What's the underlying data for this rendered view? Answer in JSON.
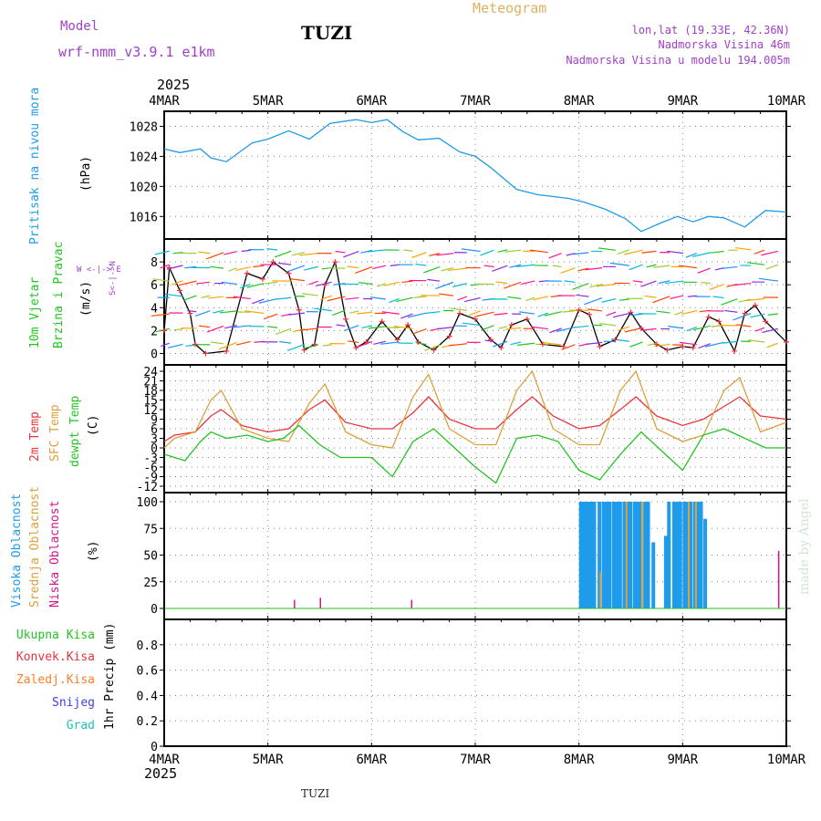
{
  "header": {
    "model_label": "Model",
    "model_name": "wrf-nmm_v3.9.1  e1km",
    "station": "TUZI",
    "meteogram_label": "Meteogram",
    "lonlat": "lon,lat (19.33E, 42.36N)",
    "altitude": "Nadmorska Visina 46m",
    "model_altitude": "Nadmorska Visina u modelu 194.005m",
    "year_top": "2025",
    "year_bottom": "2025",
    "footer_station": "TUZI",
    "credit": "made by Angel"
  },
  "colors": {
    "pressure": "#1e9bea",
    "temp2m": "#e8343c",
    "sfc": "#dca03c",
    "dewpt": "#22c422",
    "high_cloud": "#1e9bea",
    "mid_cloud": "#dca03c",
    "low_cloud": "#d4148c",
    "title": "#e0b060",
    "model": "#a040c8"
  },
  "legends": {
    "pressure_title": "Pritisak na nivou mora",
    "pressure_unit": "(hPa)",
    "wind_line1": "10m Vjetar",
    "wind_line2": "Brzina i Pravac",
    "wind_unit": "(m/s)",
    "wind_compass": "W <-|-> E",
    "wind_compass_ns": "S<-|->N",
    "temp_2m": "2m Temp",
    "temp_sfc": "SFC Temp",
    "temp_dew": "dewpt Temp",
    "temp_unit": "(C)",
    "cloud_high": "Visoka Oblacnost",
    "cloud_mid": "Srednja Oblacnost",
    "cloud_low": "Niska Oblacnost",
    "cloud_unit": "(%)",
    "precip_total": "Ukupna Kisa",
    "precip_conv": "Konvek.Kisa",
    "precip_frozen": "Zaledj.Kisa",
    "precip_snow": "Snijeg",
    "precip_hail": "Grad",
    "precip_unit": "1hr Precip (mm)"
  },
  "chart_data": [
    {
      "type": "line",
      "title": "Pritisak na nivou mora",
      "ylabel": "(hPa)",
      "x_labels": [
        "4MAR",
        "5MAR",
        "6MAR",
        "7MAR",
        "8MAR",
        "9MAR",
        "10MAR"
      ],
      "yticks": [
        1016,
        1020,
        1024,
        1028
      ],
      "ylim": [
        1013,
        1030
      ],
      "series": [
        {
          "values_x_days": [
            0,
            0.15,
            0.35,
            0.45,
            0.6,
            0.85,
            1.0,
            1.2,
            1.4,
            1.6,
            1.85,
            2.0,
            2.15,
            2.3,
            2.45,
            2.65,
            2.85,
            3.0,
            3.15,
            3.4,
            3.6,
            3.9,
            4.05,
            4.25,
            4.45,
            4.6,
            4.8,
            4.95,
            5.1,
            5.25,
            5.4,
            5.6,
            5.8,
            6.0
          ],
          "values": [
            1025,
            1024.5,
            1025,
            1023.8,
            1023.3,
            1025.8,
            1026.3,
            1027.4,
            1026.3,
            1028.4,
            1028.9,
            1028.5,
            1028.9,
            1027.3,
            1026.2,
            1026.4,
            1024.6,
            1024.0,
            1022.5,
            1019.6,
            1018.9,
            1018.4,
            1017.9,
            1017.0,
            1015.7,
            1014.0,
            1015.2,
            1016.0,
            1015.3,
            1016.0,
            1015.8,
            1014.6,
            1016.8,
            1016.6
          ]
        }
      ]
    },
    {
      "type": "line",
      "title": "10m Vjetar Brzina i Pravac",
      "ylabel": "(m/s)",
      "yticks": [
        0,
        2,
        4,
        6,
        8
      ],
      "ylim": [
        -1,
        10
      ],
      "series": [
        {
          "values_x_days": [
            0,
            0.05,
            0.15,
            0.25,
            0.3,
            0.4,
            0.6,
            0.8,
            0.95,
            1.05,
            1.2,
            1.3,
            1.35,
            1.45,
            1.55,
            1.65,
            1.75,
            1.85,
            1.95,
            2.1,
            2.25,
            2.35,
            2.45,
            2.6,
            2.75,
            2.85,
            3.0,
            3.15,
            3.25,
            3.35,
            3.5,
            3.65,
            3.85,
            4.0,
            4.1,
            4.2,
            4.35,
            4.5,
            4.6,
            4.75,
            4.85,
            5.0,
            5.1,
            5.25,
            5.35,
            5.5,
            5.6,
            5.7,
            5.8,
            6.0
          ],
          "values": [
            2,
            7.5,
            5.5,
            3.5,
            0.8,
            0,
            0.2,
            7,
            6.5,
            8,
            7,
            3.8,
            0.3,
            0.8,
            6,
            8,
            3,
            0.5,
            1,
            2.8,
            1.2,
            2.5,
            1,
            0.3,
            1.5,
            3.5,
            3,
            1.2,
            0.5,
            2.5,
            3,
            0.8,
            0.6,
            3.8,
            3.4,
            0.6,
            1.2,
            3.6,
            2.2,
            0.8,
            0.3,
            0.6,
            0.5,
            3.2,
            2.8,
            0.2,
            3.5,
            4.2,
            2.8,
            1
          ]
        }
      ]
    },
    {
      "type": "line",
      "title": "2m Temp / SFC Temp / dewpt Temp",
      "ylabel": "(C)",
      "yticks": [
        -12,
        -9,
        -6,
        -3,
        0,
        3,
        6,
        9,
        12,
        15,
        18,
        21,
        24
      ],
      "ylim": [
        -14,
        26
      ],
      "series": [
        {
          "name": "2m Temp",
          "values_x_days": [
            0,
            0.1,
            0.3,
            0.45,
            0.55,
            0.75,
            1.0,
            1.2,
            1.4,
            1.55,
            1.75,
            2.0,
            2.2,
            2.4,
            2.55,
            2.75,
            3.0,
            3.2,
            3.4,
            3.55,
            3.75,
            4.0,
            4.2,
            4.4,
            4.55,
            4.75,
            5.0,
            5.2,
            5.4,
            5.55,
            5.75,
            6.0
          ],
          "values": [
            2,
            4,
            5,
            10,
            12,
            7,
            5,
            6,
            12,
            15,
            8,
            6,
            6,
            11,
            16,
            9,
            6,
            6,
            12,
            16,
            10,
            6,
            7,
            12,
            16,
            10,
            7,
            9,
            13,
            16,
            10,
            9
          ]
        },
        {
          "name": "SFC Temp",
          "values_x_days": [
            0,
            0.1,
            0.3,
            0.45,
            0.55,
            0.75,
            1.0,
            1.2,
            1.4,
            1.55,
            1.75,
            2.0,
            2.2,
            2.4,
            2.55,
            2.75,
            3.0,
            3.2,
            3.4,
            3.55,
            3.75,
            4.0,
            4.2,
            4.4,
            4.55,
            4.75,
            5.0,
            5.2,
            5.4,
            5.55,
            5.75,
            6.0
          ],
          "values": [
            0,
            3,
            5,
            15,
            18,
            6,
            3,
            2,
            14,
            20,
            5,
            1,
            0,
            16,
            23,
            6,
            1,
            1,
            18,
            24,
            6,
            1,
            1,
            18,
            24,
            6,
            2,
            4,
            18,
            22,
            5,
            8
          ]
        },
        {
          "name": "dewpt Temp",
          "values_x_days": [
            0,
            0.2,
            0.35,
            0.45,
            0.6,
            0.8,
            1.0,
            1.15,
            1.3,
            1.5,
            1.7,
            2.0,
            2.2,
            2.4,
            2.6,
            2.8,
            3.0,
            3.2,
            3.4,
            3.6,
            3.8,
            4.0,
            4.2,
            4.4,
            4.6,
            4.8,
            5.0,
            5.2,
            5.4,
            5.6,
            5.8,
            6.0
          ],
          "values": [
            -2,
            -4,
            2,
            5,
            3,
            4,
            2,
            3,
            7,
            1,
            -3,
            -3,
            -9,
            2,
            6,
            0,
            -6,
            -11,
            3,
            4,
            2,
            -7,
            -10,
            -2,
            5,
            -1,
            -7,
            4,
            6,
            3,
            0,
            0
          ]
        }
      ]
    },
    {
      "type": "bar",
      "title": "Visoka / Srednja / Niska Oblacnost",
      "ylabel": "(%)",
      "yticks": [
        0,
        25,
        50,
        75,
        100
      ],
      "ylim": [
        0,
        100
      ],
      "series": [
        {
          "name": "Visoka Oblacnost",
          "bars_x_days": [
            4.0,
            4.02,
            4.05,
            4.08,
            4.1,
            4.13,
            4.18,
            4.22,
            4.25,
            4.28,
            4.32,
            4.35,
            4.38,
            4.42,
            4.45,
            4.48,
            4.52,
            4.55,
            4.58,
            4.62,
            4.65,
            4.7,
            4.82,
            4.85,
            4.9,
            4.93,
            4.96,
            5.0,
            5.03,
            5.06,
            5.1,
            5.13,
            5.16,
            5.2
          ],
          "values": [
            100,
            100,
            100,
            100,
            100,
            100,
            100,
            100,
            100,
            100,
            100,
            100,
            100,
            100,
            100,
            100,
            100,
            100,
            100,
            100,
            100,
            62,
            68,
            100,
            100,
            100,
            100,
            100,
            100,
            100,
            100,
            100,
            100,
            84
          ]
        },
        {
          "name": "Srednja Oblacnost",
          "bars_x_days": [
            4.2,
            4.45,
            4.6,
            5.05,
            5.12
          ],
          "values": [
            34,
            100,
            100,
            100,
            100
          ]
        },
        {
          "name": "Niska Oblacnost",
          "bars_x_days": [
            1.25,
            1.5,
            2.38,
            5.92
          ],
          "values": [
            8,
            10,
            8,
            54
          ]
        }
      ]
    },
    {
      "type": "line",
      "title": "1hr Precip",
      "ylabel": "1hr Precip (mm)",
      "yticks": [
        0,
        0.2,
        0.4,
        0.6,
        0.8
      ],
      "ylim": [
        0,
        1.0
      ],
      "series": [
        {
          "name": "Ukupna Kisa",
          "values": [
            0,
            0,
            0,
            0,
            0,
            0,
            0
          ]
        }
      ]
    }
  ]
}
